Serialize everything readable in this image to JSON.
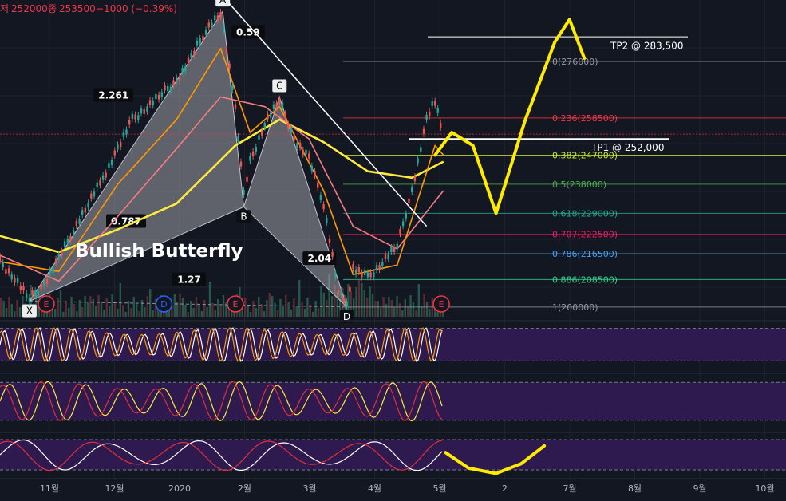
{
  "ohlc_header": {
    "low_label": "저",
    "low_value": "252000",
    "close_label": "종",
    "close_value": "253500",
    "change": "−1000 (−0.39%)"
  },
  "pattern_title": "Bullish Butterfly",
  "harmonic_points": [
    {
      "label": "X",
      "date": "2019-10-24",
      "price": 201800
    },
    {
      "label": "A",
      "date": "2020-01-24",
      "price": 291500
    },
    {
      "label": "B",
      "date": "2020-02-03",
      "price": 231000
    },
    {
      "label": "C",
      "date": "2020-02-20",
      "price": 265000
    },
    {
      "label": "D",
      "date": "2020-03-23",
      "price": 200000
    }
  ],
  "harmonic_ratios": [
    {
      "text": "2.261",
      "at": "2019-12-03",
      "price": 265000
    },
    {
      "text": "0.59",
      "at": "2020-02-05",
      "price": 284500
    },
    {
      "text": "0.787",
      "at": "2019-12-09",
      "price": 226000
    },
    {
      "text": "2.04",
      "at": "2020-03-10",
      "price": 214500
    },
    {
      "text": "1.27",
      "at": "2020-01-08",
      "price": 208000
    }
  ],
  "fib_levels": [
    {
      "label": "0(276000)",
      "price": 276000,
      "color": "#9598a1"
    },
    {
      "label": "0.236(258500)",
      "price": 258500,
      "color": "#f23645"
    },
    {
      "label": "0.382(247000)",
      "price": 247000,
      "color": "#c8e82a"
    },
    {
      "label": "0.5(238000)",
      "price": 238000,
      "color": "#4caf50"
    },
    {
      "label": "0.618(229000)",
      "price": 229000,
      "color": "#22ab94"
    },
    {
      "label": "0.707(222500)",
      "price": 222500,
      "color": "#e91e63"
    },
    {
      "label": "0.786(216500)",
      "price": 216500,
      "color": "#42a5f5"
    },
    {
      "label": "0.886(208500)",
      "price": 208500,
      "color": "#2bd68c"
    },
    {
      "label": "1(200000)",
      "price": 200000,
      "color": "#9598a1"
    }
  ],
  "targets": [
    {
      "text": "TP2 @ 283,500",
      "price": 283500
    },
    {
      "text": "TP1 @ 252,000",
      "price": 252000
    }
  ],
  "events": [
    {
      "letter": "E",
      "date": "2019-11-01",
      "type": "earnings"
    },
    {
      "letter": "D",
      "date": "2019-12-27",
      "type": "dividend"
    },
    {
      "letter": "E",
      "date": "2020-01-30",
      "type": "earnings"
    },
    {
      "letter": "E",
      "date": "2020-05-07",
      "type": "earnings"
    }
  ],
  "x_axis_labels": [
    "11월",
    "12월",
    "2020",
    "2월",
    "3월",
    "4월",
    "5월",
    "2",
    "7월",
    "8월",
    "9월",
    "10월"
  ],
  "chart_data": {
    "type": "line",
    "title": "",
    "xlabel": "",
    "ylabel": "",
    "ylim": [
      197000,
      295000
    ],
    "xlim": [
      "2019-10-10",
      "2020-10-18"
    ],
    "last_close": 253500,
    "series": [
      {
        "name": "",
        "color": "#ffffff",
        "values": [
          [
            "2019-10-10",
            214000
          ],
          [
            "2019-10-17",
            209000
          ],
          [
            "2019-10-24",
            202500
          ],
          [
            "2019-10-31",
            207000
          ],
          [
            "2019-11-07",
            215000
          ],
          [
            "2019-11-14",
            224000
          ],
          [
            "2019-11-21",
            232000
          ],
          [
            "2019-11-28",
            240000
          ],
          [
            "2019-12-05",
            249000
          ],
          [
            "2019-12-12",
            258000
          ],
          [
            "2019-12-19",
            262000
          ],
          [
            "2019-12-26",
            266000
          ],
          [
            "2020-01-02",
            270000
          ],
          [
            "2020-01-09",
            277000
          ],
          [
            "2020-01-16",
            286000
          ],
          [
            "2020-01-23",
            291000
          ],
          [
            "2020-01-30",
            262000
          ],
          [
            "2020-02-03",
            235000
          ],
          [
            "2020-02-06",
            245000
          ],
          [
            "2020-02-13",
            257000
          ],
          [
            "2020-02-20",
            264000
          ],
          [
            "2020-02-27",
            252000
          ],
          [
            "2020-03-05",
            246000
          ],
          [
            "2020-03-12",
            232000
          ],
          [
            "2020-03-19",
            205000
          ],
          [
            "2020-03-23",
            201000
          ],
          [
            "2020-03-26",
            212000
          ],
          [
            "2020-04-02",
            209000
          ],
          [
            "2020-04-09",
            214000
          ],
          [
            "2020-04-16",
            219000
          ],
          [
            "2020-04-23",
            236000
          ],
          [
            "2020-04-30",
            258000
          ],
          [
            "2020-05-04",
            264000
          ],
          [
            "2020-05-08",
            253500
          ]
        ]
      },
      {
        "name": "",
        "color": "#ffeb3b",
        "values": [
          [
            "2019-10-10",
            222000
          ],
          [
            "2019-11-07",
            217000
          ],
          [
            "2019-12-05",
            224000
          ],
          [
            "2020-01-02",
            232000
          ],
          [
            "2020-01-30",
            250000
          ],
          [
            "2020-02-20",
            258000
          ],
          [
            "2020-03-12",
            251000
          ],
          [
            "2020-04-02",
            242000
          ],
          [
            "2020-04-23",
            240000
          ],
          [
            "2020-05-08",
            245000
          ]
        ]
      },
      {
        "name": "",
        "color": "#f77c80",
        "values": [
          [
            "2019-10-10",
            216000
          ],
          [
            "2019-11-07",
            208000
          ],
          [
            "2019-12-05",
            228000
          ],
          [
            "2020-01-02",
            249000
          ],
          [
            "2020-01-23",
            265000
          ],
          [
            "2020-02-13",
            262000
          ],
          [
            "2020-03-05",
            252000
          ],
          [
            "2020-03-26",
            225000
          ],
          [
            "2020-04-16",
            218000
          ],
          [
            "2020-05-08",
            236000
          ]
        ]
      },
      {
        "name": "",
        "color": "#ff9800",
        "values": [
          [
            "2019-10-10",
            214000
          ],
          [
            "2019-11-07",
            211000
          ],
          [
            "2019-12-05",
            238000
          ],
          [
            "2020-01-02",
            258000
          ],
          [
            "2020-01-23",
            280000
          ],
          [
            "2020-02-06",
            254000
          ],
          [
            "2020-02-20",
            262000
          ],
          [
            "2020-03-12",
            236000
          ],
          [
            "2020-03-26",
            210000
          ],
          [
            "2020-04-16",
            213000
          ],
          [
            "2020-05-04",
            250000
          ],
          [
            "2020-05-08",
            247000
          ]
        ]
      }
    ],
    "projection": [
      [
        "2020-05-04",
        247000
      ],
      [
        "2020-05-12",
        254000
      ],
      [
        "2020-05-22",
        250000
      ],
      [
        "2020-06-02",
        229000
      ],
      [
        "2020-06-16",
        258000
      ],
      [
        "2020-06-30",
        282000
      ],
      [
        "2020-07-07",
        289000
      ],
      [
        "2020-07-14",
        277000
      ]
    ],
    "trendline": [
      [
        "2020-01-27",
        294000
      ],
      [
        "2020-04-30",
        225000
      ]
    ],
    "oscillator_projection": [
      [
        "2020-05-09",
        0.55
      ],
      [
        "2020-05-20",
        0.2
      ],
      [
        "2020-06-02",
        0.08
      ],
      [
        "2020-06-14",
        0.3
      ],
      [
        "2020-06-25",
        0.7
      ]
    ]
  }
}
